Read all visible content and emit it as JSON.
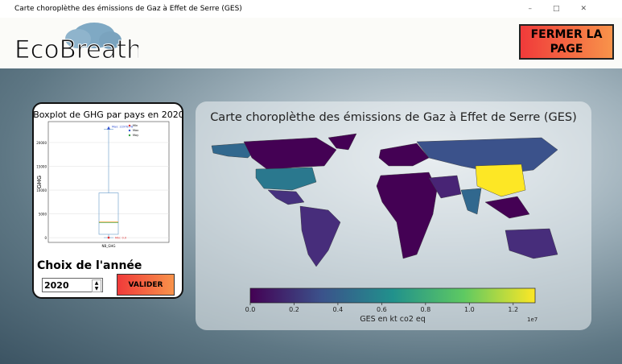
{
  "window": {
    "title": "Carte choroplèthe des émissions de Gaz à Effet de Serre (GES)"
  },
  "header": {
    "logo": "EcoBreath",
    "close_button": "FERMER LA PAGE"
  },
  "left_panel": {
    "year_label": "Choix de l'année",
    "year_value": "2020",
    "submit_button": "VALIDER"
  },
  "chart_data": [
    {
      "type": "boxplot",
      "title": "Boxplot de GHG par pays en 2020",
      "y_label": "GHG",
      "categories": [
        "NB_GHG"
      ],
      "whislo": 0,
      "q1": 700,
      "median": 3300,
      "q3": 9400,
      "whishi": 22800,
      "mean": 3300,
      "max": 23000,
      "min": 0,
      "max_annotation": "Max: 22978.78",
      "min_annotation": "Min: 0.0",
      "legend": [
        "Min",
        "Max",
        "Moy"
      ],
      "legend_colors": [
        "#e03030",
        "#3050d0",
        "#30a040"
      ],
      "ylim": [
        -1000,
        24400
      ],
      "yticks": [
        0,
        5000,
        10000,
        15000,
        20000
      ],
      "grid": true
    },
    {
      "type": "colorbar",
      "title": "Carte choroplèthe des émissions de Gaz à Effet de Serre (GES)",
      "x_label": "GES en kt co2 eq",
      "offset_label": "1e7",
      "colors": [
        "#440154",
        "#3b528b",
        "#21918c",
        "#5ec962",
        "#fde725"
      ],
      "xlim": [
        0,
        13000000
      ],
      "xticks": [
        {
          "value": 0,
          "label": "0.0"
        },
        {
          "value": 2000000,
          "label": "0.2"
        },
        {
          "value": 4000000,
          "label": "0.4"
        },
        {
          "value": 6000000,
          "label": "0.6"
        },
        {
          "value": 8000000,
          "label": "0.8"
        },
        {
          "value": 10000000,
          "label": "1.0"
        },
        {
          "value": 12000000,
          "label": "1.2"
        }
      ]
    }
  ]
}
